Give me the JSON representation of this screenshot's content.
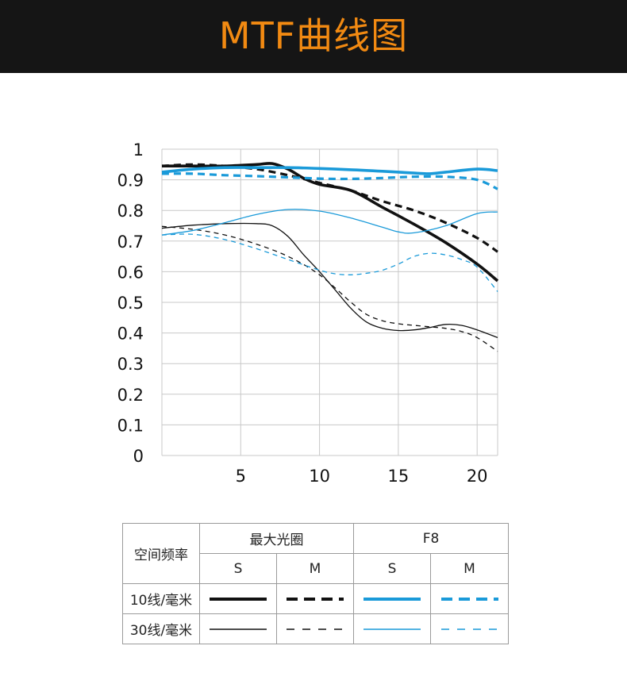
{
  "header": {
    "title": "MTF曲线图"
  },
  "colors": {
    "header_bg": "#151515",
    "title": "#f28a12",
    "black": "#111111",
    "blue": "#1a9ad9",
    "grid": "#c8c8c8"
  },
  "chart_data": {
    "type": "line",
    "x_ticks": [
      "5",
      "10",
      "15",
      "20"
    ],
    "y_ticks": [
      "0",
      "0.1",
      "0.2",
      "0.3",
      "0.4",
      "0.5",
      "0.6",
      "0.7",
      "0.8",
      "0.9",
      "1"
    ],
    "xlim": [
      0,
      21.3
    ],
    "ylim": [
      0,
      1
    ],
    "grid": true,
    "series": [
      {
        "name": "最大光圈 10线/毫米 S",
        "color": "black",
        "width": 3.6,
        "dash": "",
        "x": [
          0,
          2,
          4,
          6,
          7,
          8,
          9,
          10,
          12,
          14,
          16,
          18,
          20,
          21.3
        ],
        "y": [
          0.945,
          0.945,
          0.945,
          0.95,
          0.953,
          0.935,
          0.905,
          0.885,
          0.865,
          0.81,
          0.755,
          0.695,
          0.625,
          0.57
        ]
      },
      {
        "name": "最大光圈 10线/毫米 M",
        "color": "black",
        "width": 3.2,
        "dash": "9,6",
        "x": [
          0,
          2,
          4,
          6,
          8,
          10,
          12,
          14,
          16,
          18,
          20,
          21.3
        ],
        "y": [
          0.945,
          0.95,
          0.945,
          0.935,
          0.915,
          0.89,
          0.865,
          0.83,
          0.8,
          0.76,
          0.71,
          0.665
        ]
      },
      {
        "name": "F8 10线/毫米 S",
        "color": "blue",
        "width": 3.6,
        "dash": "",
        "x": [
          0,
          2,
          4,
          6,
          8,
          10,
          12,
          14,
          16,
          17,
          18,
          20,
          21.3
        ],
        "y": [
          0.925,
          0.935,
          0.94,
          0.94,
          0.94,
          0.937,
          0.933,
          0.928,
          0.922,
          0.92,
          0.925,
          0.935,
          0.93
        ]
      },
      {
        "name": "F8 10线/毫米 M",
        "color": "blue",
        "width": 3.2,
        "dash": "9,6",
        "x": [
          0,
          2,
          4,
          6,
          8,
          10,
          12,
          14,
          16,
          18,
          20,
          21.3
        ],
        "y": [
          0.92,
          0.92,
          0.915,
          0.912,
          0.908,
          0.904,
          0.903,
          0.906,
          0.91,
          0.91,
          0.9,
          0.87
        ]
      },
      {
        "name": "最大光圈 30线/毫米 S",
        "color": "black",
        "width": 1.3,
        "dash": "",
        "x": [
          0,
          2,
          4,
          6,
          7,
          8,
          9,
          10,
          11,
          12,
          13,
          14,
          15,
          16,
          17,
          18,
          19,
          20,
          21.3
        ],
        "y": [
          0.742,
          0.752,
          0.757,
          0.757,
          0.75,
          0.715,
          0.655,
          0.6,
          0.54,
          0.48,
          0.435,
          0.415,
          0.408,
          0.41,
          0.418,
          0.428,
          0.425,
          0.41,
          0.385
        ]
      },
      {
        "name": "最大光圈 30线/毫米 M",
        "color": "black",
        "width": 1.3,
        "dash": "6,5",
        "x": [
          0,
          2,
          4,
          6,
          8,
          10,
          12,
          13,
          14,
          15,
          16,
          17,
          18,
          19,
          20,
          21.3
        ],
        "y": [
          0.748,
          0.738,
          0.72,
          0.69,
          0.65,
          0.59,
          0.5,
          0.46,
          0.44,
          0.43,
          0.425,
          0.42,
          0.415,
          0.405,
          0.385,
          0.34
        ]
      },
      {
        "name": "F8 30线/毫米 S",
        "color": "blue",
        "width": 1.3,
        "dash": "",
        "x": [
          0,
          2,
          4,
          6,
          8,
          10,
          12,
          14,
          15,
          16,
          18,
          20,
          21.3
        ],
        "y": [
          0.72,
          0.735,
          0.76,
          0.787,
          0.803,
          0.798,
          0.775,
          0.745,
          0.73,
          0.727,
          0.75,
          0.79,
          0.795
        ]
      },
      {
        "name": "F8 30线/毫米 M",
        "color": "blue",
        "width": 1.3,
        "dash": "6,5",
        "x": [
          0,
          2,
          4,
          6,
          8,
          10,
          11,
          12,
          13,
          14,
          15,
          16,
          17,
          18,
          19,
          20,
          21.3
        ],
        "y": [
          0.72,
          0.722,
          0.705,
          0.675,
          0.64,
          0.605,
          0.593,
          0.59,
          0.595,
          0.605,
          0.625,
          0.65,
          0.66,
          0.655,
          0.64,
          0.615,
          0.535
        ]
      }
    ]
  },
  "legend": {
    "freq_label": "空间频率",
    "aperture_max": "最大光圈",
    "aperture_f8": "F8",
    "s": "S",
    "m": "M",
    "row10": "10线/毫米",
    "row30": "30线/毫米"
  }
}
